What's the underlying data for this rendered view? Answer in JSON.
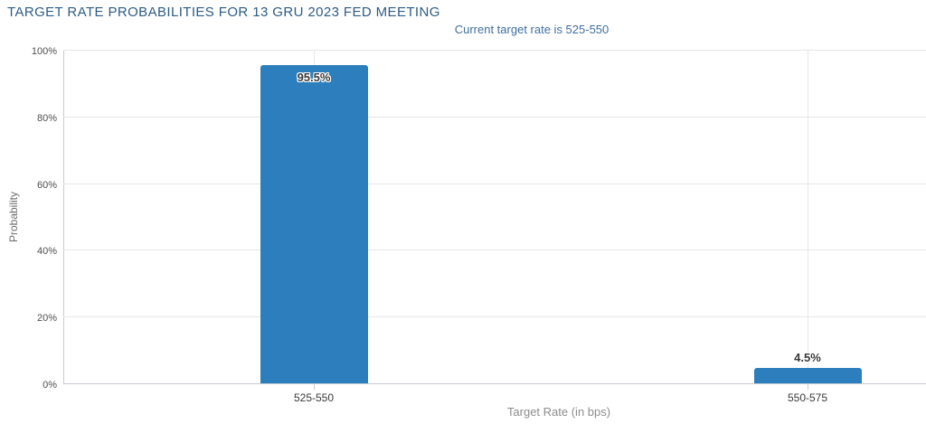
{
  "chart_data": {
    "type": "bar",
    "title": "TARGET RATE PROBABILITIES FOR 13 GRU 2023 FED MEETING",
    "subtitle": "Current target rate is 525-550",
    "xlabel": "Target Rate (in bps)",
    "ylabel": "Probability",
    "categories": [
      "525-550",
      "550-575"
    ],
    "values": [
      95.5,
      4.5
    ],
    "data_labels": [
      "95.5%",
      "4.5%"
    ],
    "ylim": [
      0,
      100
    ],
    "yticks": {
      "values": [
        0,
        20,
        40,
        60,
        80,
        100
      ],
      "labels": [
        "0%",
        "20%",
        "40%",
        "60%",
        "80%",
        "100%"
      ]
    },
    "grid": true,
    "legend": "none",
    "colors": {
      "bar": "#2c7fbc",
      "title": "#2e5c85",
      "subtitle": "#3f6fa0"
    }
  }
}
